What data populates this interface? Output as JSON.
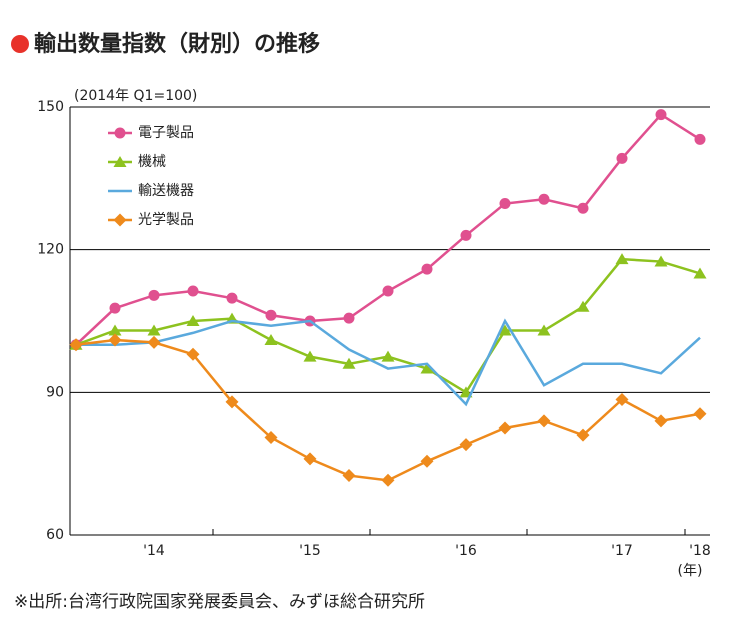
{
  "chart_data": {
    "type": "line",
    "title": "輸出数量指数（財別）の推移",
    "subtitle": "(2014年 Q1=100)",
    "source": "※出所:台湾行政院国家発展委員会、みずほ総合研究所",
    "x_unit": "(年)",
    "categories": [
      null,
      null,
      "'14",
      null,
      null,
      null,
      "'15",
      null,
      null,
      null,
      "'16",
      null,
      null,
      null,
      "'17",
      null,
      "'18"
    ],
    "series": [
      {
        "name": "電子製品",
        "color": "#e0508f",
        "marker": "circle",
        "values": [
          100,
          107.7,
          110.4,
          111.3,
          109.8,
          106.2,
          105,
          105.6,
          111.3,
          115.9,
          123,
          129.7,
          130.6,
          128.7,
          139.2,
          148.4,
          143.2
        ]
      },
      {
        "name": "機械",
        "color": "#8dc21f",
        "marker": "triangle",
        "values": [
          100,
          103,
          103,
          105,
          105.5,
          101,
          97.5,
          96,
          97.5,
          95,
          90,
          103,
          103,
          108,
          118,
          117.5,
          115
        ]
      },
      {
        "name": "輸送機器",
        "color": "#5aa9dd",
        "marker": "none",
        "values": [
          100,
          100,
          100.5,
          102.5,
          105,
          104,
          105,
          99,
          95,
          96,
          87.5,
          105,
          91.5,
          96,
          96,
          94,
          101.5
        ]
      },
      {
        "name": "光学製品",
        "color": "#ee8a1c",
        "marker": "diamond",
        "values": [
          100,
          101,
          100.5,
          98,
          88,
          80.5,
          76,
          72.5,
          71.5,
          75.5,
          79,
          82.5,
          84,
          81,
          88.5,
          84,
          85.5
        ]
      }
    ],
    "ylim": [
      60,
      150
    ],
    "yticks": [
      60,
      90,
      120,
      150
    ],
    "grid": true,
    "legend": "top-left"
  }
}
